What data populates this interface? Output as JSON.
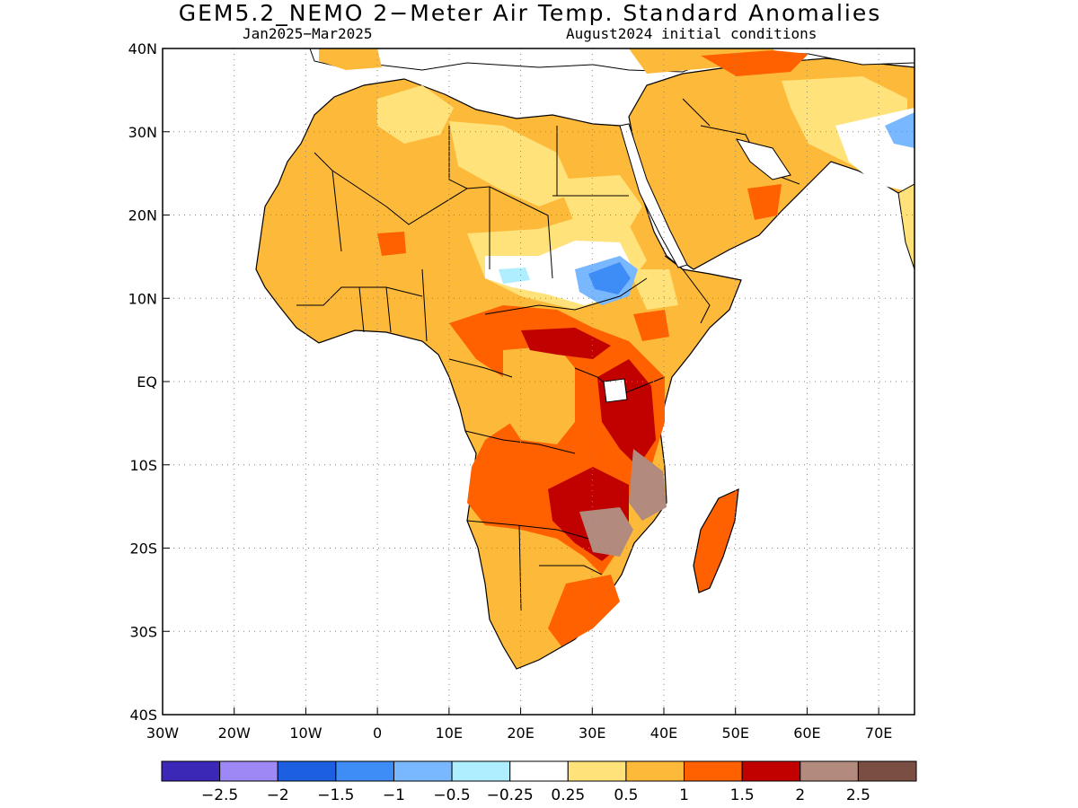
{
  "title": "GEM5.2_NEMO 2−Meter Air Temp. Standard Anomalies",
  "subtitle_period": "Jan2025−Mar2025",
  "subtitle_init": "August2024 initial conditions",
  "map": {
    "lon_range": [
      -30,
      75
    ],
    "lat_range": [
      -40,
      40
    ],
    "x_ticks": [
      "30W",
      "20W",
      "10W",
      "0",
      "10E",
      "20E",
      "30E",
      "40E",
      "50E",
      "60E",
      "70E"
    ],
    "y_ticks": [
      "40N",
      "30N",
      "20N",
      "10N",
      "EQ",
      "10S",
      "20S",
      "30S",
      "40S"
    ],
    "grid": "dotted",
    "colors": {
      "land_base": "#FDB93A",
      "weak_warm": "#FFE27A",
      "neutral": "#FFFFFF",
      "moderate_warm": "#FF6100",
      "strong_warm": "#C10000",
      "very_strong_warm": "#B28B7E",
      "weak_cool": "#AEEEFE",
      "moderate_cool": "#79B8FF",
      "strong_cool": "#3E8CF5",
      "very_strong_cool": "#1C5FE0",
      "coast": "#000000"
    }
  },
  "colorbar": {
    "colors": [
      "#3B28B7",
      "#9E88F5",
      "#1C5FE0",
      "#3E8CF5",
      "#79B8FF",
      "#AEEEFE",
      "#FFFFFF",
      "#FFE27A",
      "#FDB93A",
      "#FF6100",
      "#C10000",
      "#B28B7E",
      "#7A4E42"
    ],
    "labels": [
      "−2.5",
      "−2",
      "−1.5",
      "−1",
      "−0.5",
      "−0.25",
      "0.25",
      "0.5",
      "1",
      "1.5",
      "2",
      "2.5"
    ]
  }
}
